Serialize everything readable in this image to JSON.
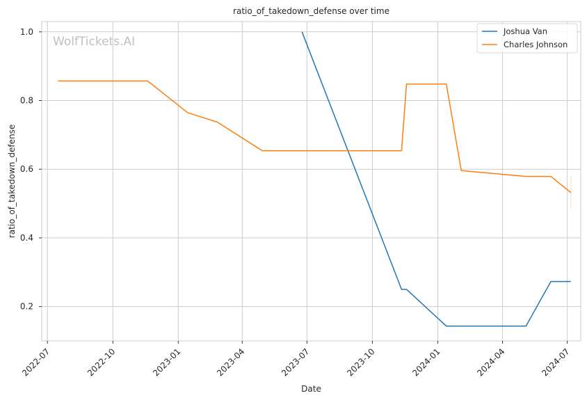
{
  "chart_data": {
    "type": "line",
    "title": "ratio_of_takedown_defense over time",
    "xlabel": "Date",
    "ylabel": "ratio_of_takedown_defense",
    "watermark": "WolfTickets.AI",
    "xlim": [
      "2022-06-23",
      "2024-07-20"
    ],
    "ylim": [
      0.1,
      1.03
    ],
    "x_ticks": [
      {
        "date": "2022-07-01",
        "label": "2022-07"
      },
      {
        "date": "2022-10-01",
        "label": "2022-10"
      },
      {
        "date": "2023-01-01",
        "label": "2023-01"
      },
      {
        "date": "2023-04-01",
        "label": "2023-04"
      },
      {
        "date": "2023-07-01",
        "label": "2023-07"
      },
      {
        "date": "2023-10-01",
        "label": "2023-10"
      },
      {
        "date": "2024-01-01",
        "label": "2024-01"
      },
      {
        "date": "2024-04-01",
        "label": "2024-04"
      },
      {
        "date": "2024-07-01",
        "label": "2024-07"
      }
    ],
    "y_ticks": [
      0.2,
      0.4,
      0.6,
      0.8,
      1.0
    ],
    "y_tick_labels": [
      "0.2",
      "0.4",
      "0.6",
      "0.8",
      "1.0"
    ],
    "grid": true,
    "legend_position": "top-right",
    "series": [
      {
        "name": "Joshua Van",
        "color": "#1f77b4",
        "points": [
          {
            "x": "2023-06-24",
            "y": 1.0
          },
          {
            "x": "2023-11-11",
            "y": 0.25
          },
          {
            "x": "2023-11-18",
            "y": 0.25
          },
          {
            "x": "2024-01-13",
            "y": 0.143
          },
          {
            "x": "2024-05-04",
            "y": 0.143
          },
          {
            "x": "2024-06-08",
            "y": 0.273
          },
          {
            "x": "2024-07-06",
            "y": 0.273
          }
        ]
      },
      {
        "name": "Charles Johnson",
        "color": "#ff7f0e",
        "points": [
          {
            "x": "2022-07-16",
            "y": 0.857
          },
          {
            "x": "2022-11-19",
            "y": 0.857
          },
          {
            "x": "2023-01-14",
            "y": 0.765
          },
          {
            "x": "2023-02-25",
            "y": 0.737
          },
          {
            "x": "2023-04-29",
            "y": 0.654
          },
          {
            "x": "2023-11-11",
            "y": 0.654
          },
          {
            "x": "2023-11-18",
            "y": 0.848
          },
          {
            "x": "2024-01-13",
            "y": 0.848
          },
          {
            "x": "2024-02-03",
            "y": 0.596
          },
          {
            "x": "2024-05-04",
            "y": 0.579
          },
          {
            "x": "2024-06-08",
            "y": 0.579
          },
          {
            "x": "2024-07-06",
            "y": 0.532
          }
        ],
        "error_band": {
          "x": "2024-07-06",
          "low": 0.485,
          "high": 0.579
        }
      }
    ]
  }
}
